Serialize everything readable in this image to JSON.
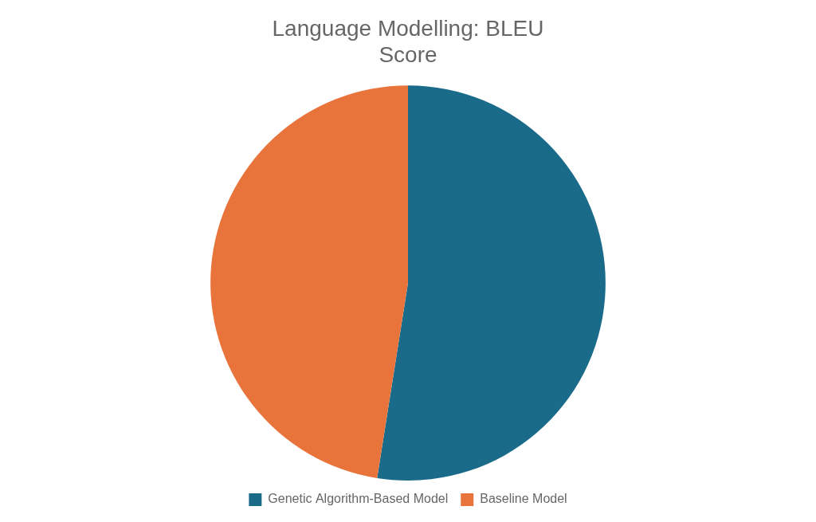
{
  "chart_data": {
    "type": "pie",
    "title": "Language Modelling: BLEU\nScore",
    "categories": [
      "Genetic Algorithm-Based Model",
      "Baseline Model"
    ],
    "values": [
      52.5,
      47.5
    ],
    "colors": [
      "#1a6b8a",
      "#e8743b"
    ],
    "legend": "bottom"
  }
}
